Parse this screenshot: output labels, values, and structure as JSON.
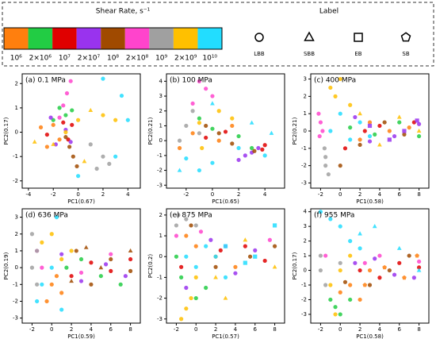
{
  "legend": {
    "title": "Shear Rate, s⁻¹",
    "rates": [
      {
        "label": "10⁶",
        "color": "#ff7f0e"
      },
      {
        "label": "2×10⁶",
        "color": "#22cc44"
      },
      {
        "label": "10⁷",
        "color": "#e00000"
      },
      {
        "label": "2×10⁷",
        "color": "#9933ee"
      },
      {
        "label": "10⁸",
        "color": "#a04a00"
      },
      {
        "label": "2×10⁸",
        "color": "#ff44cc"
      },
      {
        "label": "10⁹",
        "color": "#a0a0a0"
      },
      {
        "label": "2×10⁹",
        "color": "#ffc000"
      },
      {
        "label": "10¹⁰",
        "color": "#22ddff"
      }
    ],
    "shape_title": "Label",
    "shapes": [
      "LBB",
      "SBB",
      "EB",
      "SB"
    ]
  },
  "chart_data": [
    {
      "type": "scatter",
      "title": "(a) 0.1 MPa",
      "x_label": "PC1(0.67)",
      "y_label": "PC2(0.17)",
      "xlim": [
        -4.5,
        5
      ],
      "xticks": [
        -4,
        -2,
        0,
        2,
        4
      ],
      "ylim": [
        -2.3,
        2.4
      ],
      "yticks": [
        -2,
        -1,
        0,
        1,
        2
      ],
      "series": [
        {
          "rate": 0,
          "shape": 0,
          "x": [
            -1.5,
            -2,
            -3,
            -2.5
          ],
          "values": [
            -0.3,
            0.3,
            0.2,
            -0.6
          ]
        },
        {
          "rate": 1,
          "shape": 0,
          "x": [
            -1,
            -2,
            -1.5,
            -0.5
          ],
          "values": [
            0.7,
            0.5,
            1,
            0.9
          ]
        },
        {
          "rate": 2,
          "shape": 0,
          "x": [
            -0.5,
            -2.5,
            -1.2,
            -0.8
          ],
          "values": [
            0.3,
            -0.1,
            0.4,
            -0.3
          ]
        },
        {
          "rate": 3,
          "shape": 0,
          "x": [
            -1,
            -1.8,
            -0.6,
            -2.2
          ],
          "values": [
            0.1,
            -0.5,
            -0.4,
            0.6
          ]
        },
        {
          "rate": 4,
          "shape": 0,
          "x": [
            -1,
            -0.7,
            -0.4,
            -0.1
          ],
          "values": [
            -0.2,
            -0.6,
            -1,
            -1.4
          ]
        },
        {
          "rate": 5,
          "shape": 0,
          "x": [
            -1.5,
            -1.2,
            -0.9,
            -0.6
          ],
          "values": [
            0.6,
            1.1,
            1.6,
            2.1
          ]
        },
        {
          "rate": 6,
          "shape": 0,
          "x": [
            1,
            2,
            1.5,
            2.5
          ],
          "values": [
            -0.5,
            -1,
            -1.5,
            -1.3
          ]
        },
        {
          "rate": 7,
          "shape": 0,
          "x": [
            -1,
            0,
            2,
            3
          ],
          "values": [
            0,
            0.5,
            0.7,
            0.5
          ]
        },
        {
          "rate": 8,
          "shape": 0,
          "x": [
            2,
            4,
            3,
            0,
            3.5
          ],
          "values": [
            2.2,
            0.5,
            -1,
            -1.8,
            1.5
          ]
        },
        {
          "rate": 7,
          "shape": 1,
          "x": [
            -2,
            1,
            -3.5,
            0.5
          ],
          "values": [
            -0.5,
            0.9,
            -0.4,
            -1.2
          ]
        }
      ]
    },
    {
      "type": "scatter",
      "title": "(b) 100 MPa",
      "x_label": "PC1(0.65)",
      "y_label": "PC2(0.21)",
      "xlim": [
        -3.5,
        5.5
      ],
      "xticks": [
        -2,
        0,
        2,
        4
      ],
      "ylim": [
        -3.2,
        4.5
      ],
      "yticks": [
        -3,
        -2,
        -1,
        0,
        1,
        2,
        3,
        4
      ],
      "series": [
        {
          "rate": 0,
          "shape": 0,
          "x": [
            -1.5,
            0.5,
            1.5,
            -2.5
          ],
          "values": [
            0.5,
            0,
            1,
            -0.5
          ]
        },
        {
          "rate": 1,
          "shape": 0,
          "x": [
            -1,
            0,
            2,
            3
          ],
          "values": [
            1.5,
            0.8,
            0.3,
            -0.5
          ]
        },
        {
          "rate": 2,
          "shape": 0,
          "x": [
            3.8,
            4,
            1,
            -0.5
          ],
          "values": [
            -0.6,
            -0.3,
            0.6,
            0.2
          ]
        },
        {
          "rate": 3,
          "shape": 0,
          "x": [
            2.5,
            3,
            3.5,
            2
          ],
          "values": [
            -1,
            -0.8,
            -0.5,
            -1.3
          ]
        },
        {
          "rate": 4,
          "shape": 0,
          "x": [
            0.5,
            -0.5,
            1.5,
            3.2
          ],
          "values": [
            0.5,
            1,
            -0.2,
            -0.7
          ]
        },
        {
          "rate": 5,
          "shape": 0,
          "x": [
            -1.5,
            -0.5,
            -1,
            0
          ],
          "values": [
            2.5,
            3.5,
            4,
            3
          ]
        },
        {
          "rate": 6,
          "shape": 0,
          "x": [
            -2,
            -1.5,
            -2.5,
            -1
          ],
          "values": [
            1,
            2,
            0,
            0.5
          ]
        },
        {
          "rate": 7,
          "shape": 0,
          "x": [
            -1,
            -0.8,
            0.5,
            1.5
          ],
          "values": [
            1.2,
            -0.5,
            2,
            1.5
          ]
        },
        {
          "rate": 8,
          "shape": 0,
          "x": [
            -2,
            -1,
            0,
            2,
            4
          ],
          "values": [
            -1.2,
            -2,
            -1.5,
            -0.5,
            -1
          ]
        },
        {
          "rate": 8,
          "shape": 1,
          "x": [
            -2.5,
            3,
            4.5,
            0
          ],
          "values": [
            -2,
            1.2,
            0.5,
            2.5
          ]
        }
      ]
    },
    {
      "type": "scatter",
      "title": "(c) 400 MPa",
      "x_label": "PC1(0.58)",
      "y_label": "PC2(0.21)",
      "xlim": [
        -3,
        9
      ],
      "xticks": [
        -2,
        0,
        2,
        4,
        6,
        8
      ],
      "ylim": [
        -3.3,
        3.3
      ],
      "yticks": [
        -3,
        -2,
        -1,
        0,
        1,
        2,
        3
      ],
      "series": [
        {
          "rate": 0,
          "shape": 0,
          "x": [
            2,
            3,
            5,
            7
          ],
          "values": [
            -0.5,
            0.5,
            0,
            0.2
          ]
        },
        {
          "rate": 1,
          "shape": 0,
          "x": [
            1,
            3.5,
            6,
            8
          ],
          "values": [
            0.2,
            -0.2,
            0.5,
            -0.3
          ]
        },
        {
          "rate": 2,
          "shape": 0,
          "x": [
            0.5,
            2.5,
            4,
            7.5
          ],
          "values": [
            -1,
            0,
            0.3,
            0.5
          ]
        },
        {
          "rate": 3,
          "shape": 0,
          "x": [
            1.5,
            3,
            5.5,
            8
          ],
          "values": [
            0.8,
            -0.6,
            -0.3,
            0.4
          ]
        },
        {
          "rate": 4,
          "shape": 0,
          "x": [
            0,
            2,
            4.5,
            6.5
          ],
          "values": [
            -2,
            -0.8,
            0.5,
            -0.2
          ]
        },
        {
          "rate": 5,
          "shape": 0,
          "x": [
            -2,
            -2.2,
            -1.8,
            -2.1
          ],
          "values": [
            0.5,
            1,
            0,
            -0.3
          ]
        },
        {
          "rate": 6,
          "shape": 0,
          "x": [
            -1.5,
            -1.5,
            -1.2,
            -1.6
          ],
          "values": [
            -1.5,
            -2,
            -2.5,
            -1
          ]
        },
        {
          "rate": 7,
          "shape": 0,
          "x": [
            -1,
            0,
            -0.5,
            1
          ],
          "values": [
            2.5,
            3,
            2,
            1.5
          ]
        },
        {
          "rate": 8,
          "shape": 0,
          "x": [
            -1,
            0,
            1,
            2,
            3
          ],
          "values": [
            0,
            1,
            -0.5,
            0.5,
            -0.3
          ]
        },
        {
          "rate": 7,
          "shape": 1,
          "x": [
            2,
            4,
            6,
            8
          ],
          "values": [
            1,
            -0.8,
            0.8,
            0
          ]
        },
        {
          "rate": 3,
          "shape": 2,
          "x": [
            3,
            5,
            6.5,
            7.8
          ],
          "values": [
            0.3,
            -0.5,
            0,
            0.6
          ]
        }
      ]
    },
    {
      "type": "scatter",
      "title": "(d) 636 MPa",
      "x_label": "PC1(0.59)",
      "y_label": "PC2(0.19)",
      "xlim": [
        -3,
        9
      ],
      "xticks": [
        -2,
        0,
        2,
        4,
        6,
        8
      ],
      "ylim": [
        -3.3,
        3.5
      ],
      "yticks": [
        -3,
        -2,
        -1,
        0,
        1,
        2,
        3
      ],
      "series": [
        {
          "rate": 0,
          "shape": 0,
          "x": [
            0,
            1,
            0.5,
            -0.5
          ],
          "values": [
            -1,
            -1.5,
            -0.5,
            -2
          ]
        },
        {
          "rate": 1,
          "shape": 0,
          "x": [
            1.5,
            3,
            5,
            7
          ],
          "values": [
            0,
            0.5,
            -0.5,
            -1
          ]
        },
        {
          "rate": 2,
          "shape": 0,
          "x": [
            2,
            4,
            6,
            8
          ],
          "values": [
            -0.5,
            0.3,
            -0.2,
            0.5
          ]
        },
        {
          "rate": 3,
          "shape": 0,
          "x": [
            1,
            3,
            5.5,
            7.5
          ],
          "values": [
            0.8,
            -0.8,
            0.2,
            -0.5
          ]
        },
        {
          "rate": 4,
          "shape": 0,
          "x": [
            2.5,
            4,
            6,
            8
          ],
          "values": [
            1,
            -1,
            0.5,
            -0.2
          ]
        },
        {
          "rate": 5,
          "shape": 0,
          "x": [
            -1.5,
            -1,
            3,
            6
          ],
          "values": [
            1,
            0,
            -0.3,
            0.8
          ]
        },
        {
          "rate": 6,
          "shape": 0,
          "x": [
            -2,
            -1.5,
            -2,
            -1.5
          ],
          "values": [
            2,
            1,
            0,
            -1
          ]
        },
        {
          "rate": 7,
          "shape": 0,
          "x": [
            -1,
            0,
            1,
            2
          ],
          "values": [
            1.5,
            2,
            0.5,
            1
          ]
        },
        {
          "rate": 8,
          "shape": 0,
          "x": [
            -1,
            0,
            -1.5,
            0.5,
            1
          ],
          "values": [
            -1,
            0,
            -2,
            3,
            -2.5
          ]
        },
        {
          "rate": 4,
          "shape": 1,
          "x": [
            2,
            3.5,
            5,
            8
          ],
          "values": [
            -0.8,
            1.2,
            0,
            1
          ]
        }
      ]
    },
    {
      "type": "scatter",
      "title": "(e) 875 MPa",
      "x_label": "PC1(0.57)",
      "y_label": "PC2(0.2)",
      "xlim": [
        -3,
        9
      ],
      "xticks": [
        -2,
        0,
        2,
        4,
        6,
        8
      ],
      "ylim": [
        -3.2,
        2.3
      ],
      "yticks": [
        -3,
        -2,
        -1,
        0,
        1,
        2
      ],
      "series": [
        {
          "rate": 0,
          "shape": 0,
          "x": [
            -1,
            0,
            2,
            4
          ],
          "values": [
            1,
            0.5,
            0,
            -0.5
          ]
        },
        {
          "rate": 1,
          "shape": 0,
          "x": [
            -2,
            -1.5,
            0,
            1
          ],
          "values": [
            0,
            -1,
            -2,
            -1.5
          ]
        },
        {
          "rate": 2,
          "shape": 0,
          "x": [
            -1.5,
            2.5,
            5,
            7
          ],
          "values": [
            -0.5,
            0.3,
            0.5,
            -0.2
          ]
        },
        {
          "rate": 3,
          "shape": 0,
          "x": [
            -1,
            1.5,
            4,
            6
          ],
          "values": [
            -1.5,
            0.8,
            -0.8,
            0.3
          ]
        },
        {
          "rate": 4,
          "shape": 0,
          "x": [
            -0.5,
            2,
            5.5,
            8
          ],
          "values": [
            1.5,
            -0.5,
            0,
            0.5
          ]
        },
        {
          "rate": 5,
          "shape": 0,
          "x": [
            -2,
            0.5,
            3,
            7.5
          ],
          "values": [
            1,
            1.2,
            0.5,
            0.8
          ]
        },
        {
          "rate": 6,
          "shape": 0,
          "x": [
            -2,
            -1.8,
            -1,
            0
          ],
          "values": [
            1.5,
            2,
            1.8,
            1.5
          ]
        },
        {
          "rate": 7,
          "shape": 0,
          "x": [
            -1,
            -0.5,
            -1.5,
            0
          ],
          "values": [
            -2.5,
            -2,
            -3,
            -1
          ]
        },
        {
          "rate": 8,
          "shape": 0,
          "x": [
            -1,
            0,
            1,
            2,
            3
          ],
          "values": [
            0,
            -0.5,
            0.5,
            0,
            -1
          ]
        },
        {
          "rate": 7,
          "shape": 1,
          "x": [
            2,
            3,
            5,
            8
          ],
          "values": [
            -1,
            -2,
            0.8,
            -0.5
          ]
        },
        {
          "rate": 8,
          "shape": 2,
          "x": [
            3,
            5,
            6,
            8
          ],
          "values": [
            0.5,
            -0.3,
            0,
            1.5
          ]
        }
      ]
    },
    {
      "type": "scatter",
      "title": "(f) 955 MPa",
      "x_label": "PC1(0.58)",
      "y_label": "PC2(0.17)",
      "xlim": [
        -3,
        9
      ],
      "xticks": [
        -2,
        0,
        2,
        4,
        6,
        8
      ],
      "ylim": [
        -3.6,
        4.2
      ],
      "yticks": [
        -3,
        -2,
        -1,
        0,
        1,
        2,
        3,
        4
      ],
      "series": [
        {
          "rate": 0,
          "shape": 0,
          "x": [
            0,
            1,
            2,
            3
          ],
          "values": [
            -1.5,
            -1,
            -2,
            0
          ]
        },
        {
          "rate": 1,
          "shape": 0,
          "x": [
            -1,
            -0.5,
            0,
            1
          ],
          "values": [
            -2,
            -2.5,
            -3,
            -2
          ]
        },
        {
          "rate": 2,
          "shape": 0,
          "x": [
            2,
            4,
            6,
            8
          ],
          "values": [
            0,
            -0.5,
            0.5,
            0.2
          ]
        },
        {
          "rate": 3,
          "shape": 0,
          "x": [
            1.5,
            3.5,
            5.5,
            7.5
          ],
          "values": [
            0.5,
            0.8,
            -0.3,
            -0.5
          ]
        },
        {
          "rate": 4,
          "shape": 0,
          "x": [
            0.5,
            3,
            5,
            7
          ],
          "values": [
            -0.8,
            -1,
            0,
            1
          ]
        },
        {
          "rate": 5,
          "shape": 0,
          "x": [
            -1.5,
            2.5,
            4,
            8
          ],
          "values": [
            1,
            0.5,
            1,
            0.6
          ]
        },
        {
          "rate": 6,
          "shape": 0,
          "x": [
            -2,
            -1.5,
            -2,
            0
          ],
          "values": [
            0,
            -1,
            1,
            0.5
          ]
        },
        {
          "rate": 7,
          "shape": 0,
          "x": [
            -1,
            0,
            1,
            -0.5
          ],
          "values": [
            -1,
            0,
            1,
            -3
          ]
        },
        {
          "rate": 8,
          "shape": 0,
          "x": [
            -2,
            -1,
            0,
            1,
            2
          ],
          "values": [
            4,
            3.5,
            3,
            2,
            1.5
          ]
        },
        {
          "rate": 8,
          "shape": 1,
          "x": [
            2,
            3.5,
            6,
            8
          ],
          "values": [
            2.5,
            3,
            1.5,
            0
          ]
        },
        {
          "rate": 0,
          "shape": 3,
          "x": [
            2.5,
            4.5,
            6.5,
            7.8
          ],
          "values": [
            -1,
            0.2,
            -0.5,
            1
          ]
        }
      ]
    }
  ]
}
